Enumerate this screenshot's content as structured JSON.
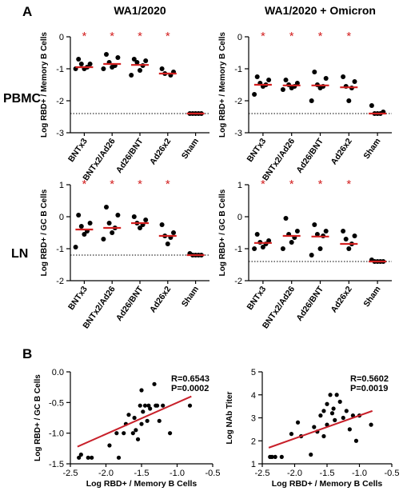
{
  "panel_labels": {
    "a": "A",
    "b": "B"
  },
  "row_labels": {
    "pbmc": "PBMC",
    "ln": "LN"
  },
  "colors": {
    "median_line": "#d32020",
    "point": "#000000",
    "asterisk": "#d32020",
    "regression": "#c8202a",
    "axis": "#000000"
  },
  "chart_data": [
    {
      "id": "pbmc_wa1",
      "type": "scatter",
      "title": "WA1/2020",
      "ylabel": "Log RBD+ / Memory B Cells",
      "ylim": [
        -3,
        0
      ],
      "yticks": [
        "0",
        "-1",
        "-2",
        "-3"
      ],
      "categories": [
        "BNTx3",
        "BNTx2/Ad26",
        "Ad26/BNT",
        "Ad26x2",
        "Sham"
      ],
      "points": [
        [
          -0.7,
          -0.85,
          -0.85,
          -0.95,
          -1.0,
          -1.0
        ],
        [
          -0.55,
          -0.65,
          -0.8,
          -0.9,
          -0.95,
          -1.0
        ],
        [
          -0.7,
          -0.75,
          -0.8,
          -0.9,
          -1.05,
          -1.2
        ],
        [
          -1.0,
          -1.1,
          -1.15,
          -1.2
        ],
        [
          -2.4,
          -2.4,
          -2.4,
          -2.4,
          -2.4
        ]
      ],
      "medians": [
        -0.95,
        -0.85,
        -0.88,
        -1.15,
        -2.4
      ],
      "significance": [
        "*",
        "*",
        "*",
        "*",
        ""
      ],
      "dotted_line": -2.4
    },
    {
      "id": "pbmc_omicron",
      "type": "scatter",
      "title": "WA1/2020 + Omicron",
      "ylabel": "Log RBD+ / Memory B Cells",
      "ylim": [
        -3,
        0
      ],
      "yticks": [
        "0",
        "-1",
        "-2",
        "-3"
      ],
      "categories": [
        "BNTx3",
        "BNTx2/Ad26",
        "Ad26/BNT",
        "Ad26x2",
        "Sham"
      ],
      "points": [
        [
          -1.25,
          -1.35,
          -1.45,
          -1.5,
          -1.55,
          -1.8
        ],
        [
          -1.35,
          -1.45,
          -1.5,
          -1.55,
          -1.6,
          -1.65
        ],
        [
          -1.1,
          -1.3,
          -1.5,
          -1.55,
          -1.6,
          -2.0
        ],
        [
          -1.25,
          -1.4,
          -1.55,
          -1.6,
          -2.0
        ],
        [
          -2.15,
          -2.35,
          -2.4,
          -2.4,
          -2.4
        ]
      ],
      "medians": [
        -1.5,
        -1.52,
        -1.52,
        -1.58,
        -2.4
      ],
      "significance": [
        "*",
        "*",
        "*",
        "*",
        ""
      ],
      "dotted_line": -2.4
    },
    {
      "id": "ln_wa1",
      "type": "scatter",
      "title": "",
      "ylabel": "Log RBD+ / GC B Cells",
      "ylim": [
        -2,
        1
      ],
      "yticks": [
        "1",
        "0",
        "-1",
        "-2"
      ],
      "categories": [
        "BNTx3",
        "BNTx2/Ad26",
        "Ad26/BNT",
        "Ad26x2",
        "Sham"
      ],
      "points": [
        [
          0.05,
          -0.2,
          -0.3,
          -0.45,
          -0.55,
          -0.95
        ],
        [
          0.3,
          0.05,
          -0.2,
          -0.35,
          -0.5,
          -0.7
        ],
        [
          0.0,
          -0.1,
          -0.2,
          -0.25,
          -0.35
        ],
        [
          -0.25,
          -0.5,
          -0.6,
          -0.65,
          -0.85
        ],
        [
          -1.15,
          -1.2,
          -1.2,
          -1.2,
          -1.2
        ]
      ],
      "medians": [
        -0.4,
        -0.35,
        -0.2,
        -0.6,
        -1.2
      ],
      "significance": [
        "*",
        "*",
        "*",
        "*",
        ""
      ],
      "dotted_line": -1.2
    },
    {
      "id": "ln_omicron",
      "type": "scatter",
      "title": "",
      "ylabel": "Log RBD+ / GC B Cells",
      "ylim": [
        -2,
        1
      ],
      "yticks": [
        "1",
        "0",
        "-1",
        "-2"
      ],
      "categories": [
        "BNTx3",
        "BNTx2/Ad26",
        "Ad26/BNT",
        "Ad26x2",
        "Sham"
      ],
      "points": [
        [
          -0.55,
          -0.75,
          -0.8,
          -0.85,
          -0.95,
          -1.0
        ],
        [
          -0.05,
          -0.45,
          -0.55,
          -0.65,
          -0.8,
          -1.0
        ],
        [
          -0.25,
          -0.45,
          -0.55,
          -0.6,
          -1.0,
          -1.2
        ],
        [
          -0.45,
          -0.6,
          -0.7,
          -0.85,
          -1.0
        ],
        [
          -1.35,
          -1.4,
          -1.4,
          -1.4,
          -1.4
        ]
      ],
      "medians": [
        -0.82,
        -0.6,
        -0.62,
        -0.85,
        -1.4
      ],
      "significance": [
        "*",
        "*",
        "*",
        "*",
        ""
      ],
      "dotted_line": -1.4
    },
    {
      "id": "corr_gc",
      "type": "scatter",
      "xlabel": "Log RBD+ / Memory B Cells",
      "ylabel": "Log RBD+ / GC B Cells",
      "xlim": [
        -2.5,
        -0.5
      ],
      "ylim": [
        -1.5,
        0.0
      ],
      "xticks": [
        "-2.5",
        "-2.0",
        "-1.5",
        "-1.0",
        "-0.5"
      ],
      "yticks": [
        "0.0",
        "-0.5",
        "-1.0",
        "-1.5"
      ],
      "annotation": [
        "R=0.6543",
        "P=0.0002"
      ],
      "x": [
        -2.38,
        -2.35,
        -2.25,
        -2.2,
        -1.95,
        -1.85,
        -1.82,
        -1.75,
        -1.72,
        -1.68,
        -1.62,
        -1.6,
        -1.58,
        -1.55,
        -1.52,
        -1.5,
        -1.48,
        -1.45,
        -1.42,
        -1.4,
        -1.38,
        -1.32,
        -1.3,
        -1.28,
        -1.25,
        -1.2,
        -1.1,
        -0.82,
        -1.5
      ],
      "y": [
        -1.4,
        -1.35,
        -1.4,
        -1.4,
        -1.2,
        -1.0,
        -1.4,
        -1.0,
        -0.85,
        -0.7,
        -1.0,
        -0.75,
        -0.95,
        -1.1,
        -0.55,
        -0.3,
        -0.65,
        -0.55,
        -0.8,
        -0.55,
        -0.6,
        -0.2,
        -0.55,
        -0.55,
        -0.8,
        -0.55,
        -1.0,
        -0.55,
        -0.85
      ],
      "fit_line": {
        "x": [
          -2.4,
          -0.8
        ],
        "y": [
          -1.22,
          -0.4
        ]
      }
    },
    {
      "id": "corr_nab",
      "type": "scatter",
      "xlabel": "Log RBD+ / Memory B Cells",
      "ylabel": "Log NAb Titer",
      "xlim": [
        -2.5,
        -0.5
      ],
      "ylim": [
        1,
        5
      ],
      "xticks": [
        "-2.5",
        "-2.0",
        "-1.5",
        "-1.0",
        "-0.5"
      ],
      "yticks": [
        "5",
        "4",
        "3",
        "2",
        "1"
      ],
      "annotation": [
        "R=0.5602",
        "P=0.0019"
      ],
      "x": [
        -2.38,
        -2.35,
        -2.3,
        -2.2,
        -2.05,
        -1.95,
        -1.9,
        -1.75,
        -1.7,
        -1.65,
        -1.6,
        -1.55,
        -1.55,
        -1.5,
        -1.5,
        -1.45,
        -1.42,
        -1.4,
        -1.38,
        -1.35,
        -1.3,
        -1.25,
        -1.2,
        -1.15,
        -1.1,
        -1.05,
        -1.0,
        -0.82
      ],
      "y": [
        1.3,
        1.3,
        1.3,
        1.3,
        2.3,
        2.8,
        2.2,
        1.4,
        2.6,
        2.4,
        3.1,
        3.3,
        2.2,
        3.6,
        2.7,
        4.0,
        3.2,
        3.4,
        2.9,
        4.0,
        3.7,
        3.0,
        3.3,
        2.5,
        3.1,
        2.0,
        3.1,
        2.7
      ],
      "fit_line": {
        "x": [
          -2.4,
          -0.8
        ],
        "y": [
          1.7,
          3.3
        ]
      }
    }
  ]
}
